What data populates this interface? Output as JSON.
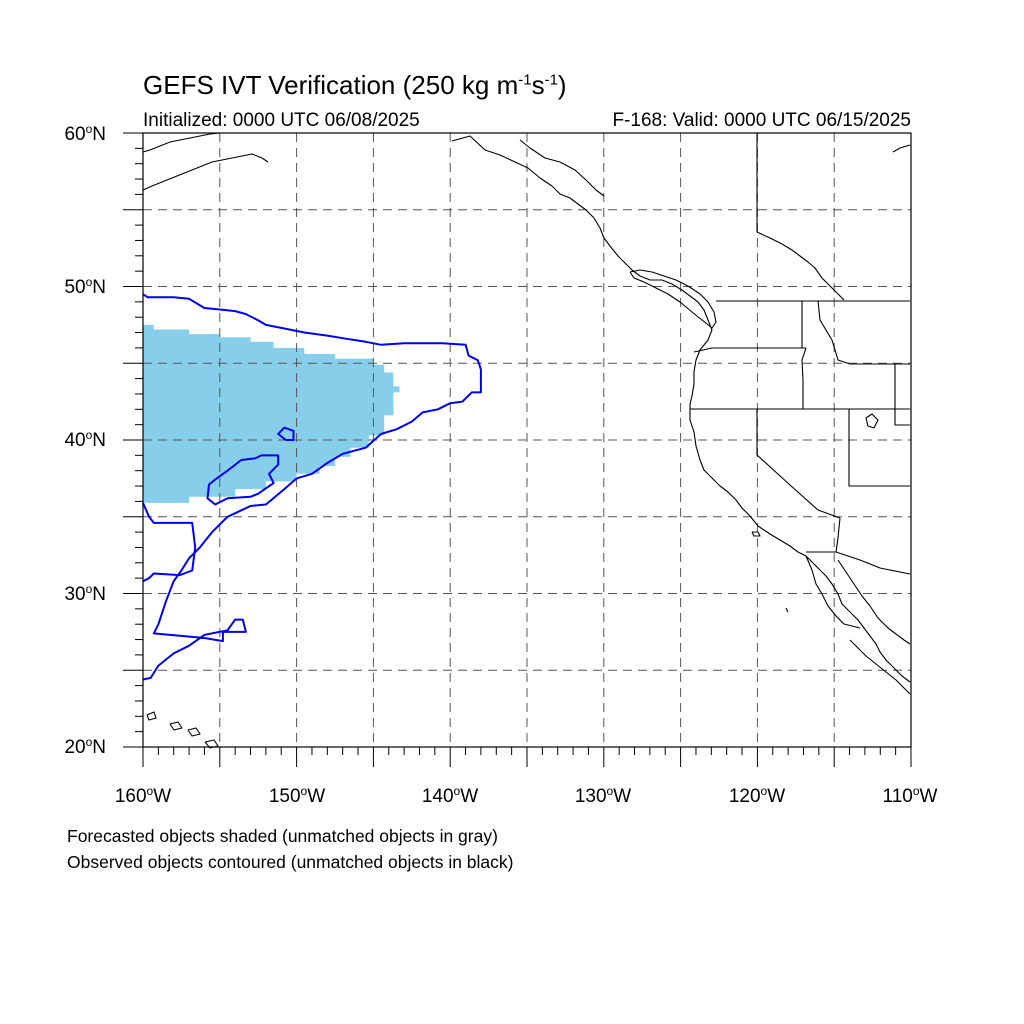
{
  "title": {
    "main": "GEFS IVT Verification (250 kg m",
    "sup1": "-1",
    "mid": "s",
    "sup2": "-1",
    "end": ")"
  },
  "initialized": "Initialized: 0000 UTC 06/08/2025",
  "valid": "F-168: Valid: 0000 UTC 06/15/2025",
  "axes": {
    "lat_labels": [
      "60",
      "50",
      "40",
      "30",
      "20"
    ],
    "lat_suffix": "N",
    "lon_labels": [
      "160",
      "150",
      "140",
      "130",
      "120",
      "110"
    ],
    "lon_suffix": "W",
    "lon_range": [
      -160,
      -110
    ],
    "lat_range": [
      20,
      60
    ],
    "grid_spacing_deg": 5
  },
  "notes": {
    "forecast": "Forecasted objects shaded (unmatched objects in gray)",
    "observed": "Observed objects contoured (unmatched objects in black)"
  },
  "colors": {
    "forecast_fill": "#87ceeb",
    "observed_contour": "#0000ee",
    "coastline": "#000000",
    "grid": "#555555"
  },
  "map_data": {
    "forecast_object": [
      [
        -160.0,
        47.5
      ],
      [
        -159.3,
        47.5
      ],
      [
        -159.3,
        47.2
      ],
      [
        -157.0,
        47.2
      ],
      [
        -157.0,
        46.9
      ],
      [
        -155.0,
        46.9
      ],
      [
        -155.0,
        46.7
      ],
      [
        -153.0,
        46.7
      ],
      [
        -153.0,
        46.4
      ],
      [
        -151.5,
        46.4
      ],
      [
        -151.5,
        46.0
      ],
      [
        -149.5,
        46.0
      ],
      [
        -149.5,
        45.6
      ],
      [
        -147.5,
        45.6
      ],
      [
        -147.5,
        45.3
      ],
      [
        -145.0,
        45.3
      ],
      [
        -145.0,
        44.9
      ],
      [
        -144.3,
        44.9
      ],
      [
        -144.3,
        44.4
      ],
      [
        -143.7,
        44.4
      ],
      [
        -143.7,
        43.5
      ],
      [
        -143.3,
        43.5
      ],
      [
        -143.3,
        43.1
      ],
      [
        -143.7,
        43.1
      ],
      [
        -143.7,
        41.6
      ],
      [
        -144.3,
        41.6
      ],
      [
        -144.3,
        40.3
      ],
      [
        -145.3,
        40.3
      ],
      [
        -145.3,
        39.5
      ],
      [
        -146.5,
        39.5
      ],
      [
        -146.5,
        38.9
      ],
      [
        -147.5,
        38.9
      ],
      [
        -147.5,
        38.3
      ],
      [
        -148.5,
        38.3
      ],
      [
        -148.5,
        37.8
      ],
      [
        -150.0,
        37.8
      ],
      [
        -150.0,
        37.3
      ],
      [
        -152.0,
        37.3
      ],
      [
        -152.0,
        36.8
      ],
      [
        -154.0,
        36.8
      ],
      [
        -154.0,
        36.3
      ],
      [
        -157.0,
        36.3
      ],
      [
        -157.0,
        35.9
      ],
      [
        -160.0,
        35.9
      ]
    ],
    "observed_contours": [
      [
        [
          -160.0,
          49.5
        ],
        [
          -159.7,
          49.3
        ],
        [
          -158.0,
          49.3
        ],
        [
          -157.0,
          49.2
        ],
        [
          -156.0,
          48.6
        ],
        [
          -155.0,
          48.5
        ],
        [
          -154.0,
          48.4
        ],
        [
          -153.3,
          48.2
        ],
        [
          -152.5,
          47.8
        ],
        [
          -152.0,
          47.5
        ],
        [
          -151.0,
          47.3
        ],
        [
          -149.5,
          47.0
        ],
        [
          -148.0,
          46.8
        ],
        [
          -146.8,
          46.6
        ],
        [
          -145.5,
          46.4
        ],
        [
          -144.5,
          46.2
        ],
        [
          -143.0,
          46.3
        ],
        [
          -140.5,
          46.3
        ],
        [
          -139.0,
          46.2
        ],
        [
          -138.8,
          45.5
        ],
        [
          -138.2,
          45.2
        ],
        [
          -138.0,
          44.6
        ],
        [
          -138.0,
          43.1
        ],
        [
          -138.6,
          43.1
        ],
        [
          -139.2,
          42.5
        ],
        [
          -140.0,
          42.4
        ],
        [
          -140.8,
          42.0
        ],
        [
          -141.8,
          41.8
        ],
        [
          -142.5,
          41.2
        ],
        [
          -143.5,
          40.7
        ],
        [
          -144.5,
          40.4
        ],
        [
          -145.5,
          39.5
        ],
        [
          -147.0,
          39.1
        ],
        [
          -148.0,
          38.5
        ],
        [
          -149.0,
          37.8
        ],
        [
          -150.0,
          37.5
        ],
        [
          -150.8,
          36.8
        ],
        [
          -152.0,
          35.8
        ],
        [
          -153.0,
          35.7
        ],
        [
          -154.5,
          35.0
        ],
        [
          -155.5,
          34.0
        ],
        [
          -156.3,
          33.0
        ],
        [
          -157.0,
          32.3
        ],
        [
          -157.5,
          31.5
        ],
        [
          -158.0,
          30.8
        ],
        [
          -158.5,
          29.5
        ],
        [
          -159.0,
          28.0
        ],
        [
          -159.3,
          27.4
        ],
        [
          -156.0,
          27.1
        ],
        [
          -154.8,
          26.9
        ],
        [
          -154.8,
          27.5
        ],
        [
          -153.3,
          27.5
        ],
        [
          -153.5,
          28.3
        ],
        [
          -154.0,
          28.3
        ],
        [
          -154.5,
          27.6
        ],
        [
          -156.0,
          27.3
        ],
        [
          -157.0,
          26.6
        ],
        [
          -158.0,
          26.1
        ],
        [
          -159.0,
          25.3
        ],
        [
          -159.5,
          24.5
        ],
        [
          -160.0,
          24.4
        ]
      ],
      [
        [
          -160.0,
          35.9
        ],
        [
          -159.6,
          35.0
        ],
        [
          -159.3,
          34.6
        ],
        [
          -156.8,
          34.6
        ],
        [
          -156.6,
          33.0
        ],
        [
          -156.8,
          31.5
        ],
        [
          -157.6,
          31.2
        ],
        [
          -159.3,
          31.3
        ],
        [
          -159.6,
          31.0
        ],
        [
          -160.0,
          30.8
        ]
      ],
      [
        [
          -152.0,
          39.0
        ],
        [
          -151.2,
          39.0
        ],
        [
          -151.2,
          38.4
        ],
        [
          -151.8,
          37.8
        ],
        [
          -151.5,
          37.2
        ],
        [
          -152.5,
          36.5
        ],
        [
          -153.0,
          36.3
        ],
        [
          -154.5,
          36.2
        ],
        [
          -155.3,
          35.8
        ],
        [
          -155.8,
          36.2
        ],
        [
          -155.7,
          37.1
        ],
        [
          -155.2,
          37.5
        ],
        [
          -154.5,
          38.0
        ],
        [
          -153.6,
          38.7
        ],
        [
          -152.7,
          38.8
        ],
        [
          -152.3,
          39.0
        ],
        [
          -152.0,
          39.0
        ]
      ],
      [
        [
          -150.7,
          40.0
        ],
        [
          -150.2,
          40.0
        ],
        [
          -150.2,
          40.6
        ],
        [
          -150.8,
          40.8
        ],
        [
          -151.2,
          40.4
        ],
        [
          -150.7,
          40.0
        ]
      ]
    ]
  }
}
